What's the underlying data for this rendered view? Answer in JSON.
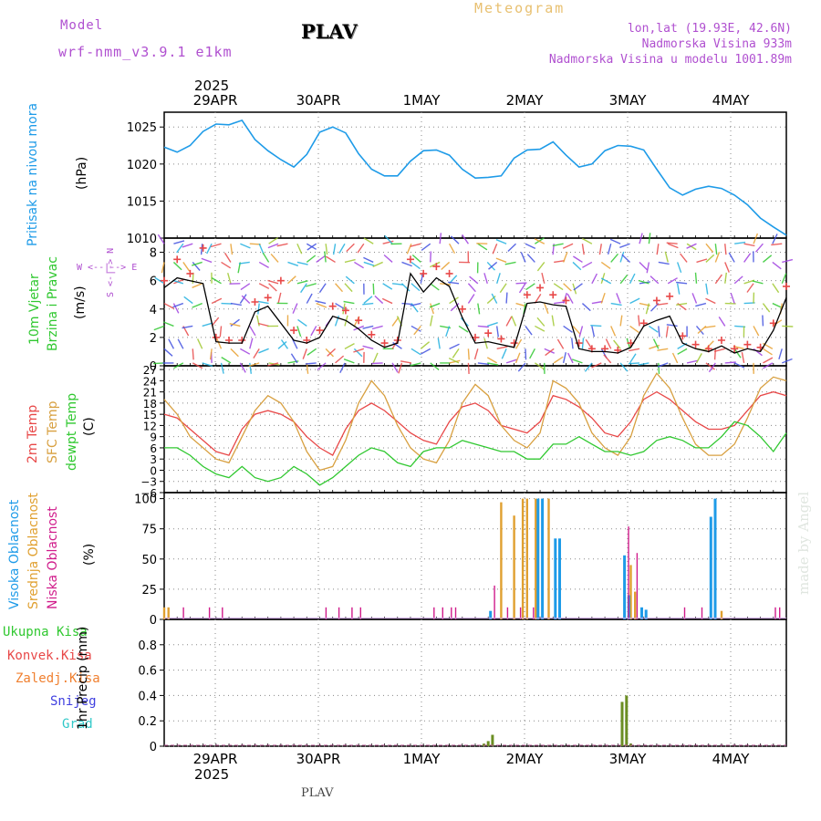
{
  "header": {
    "model_label": "Model",
    "model_name": "wrf-nmm_v3.9.1  e1km",
    "station": "PLAV",
    "meteogram": "Meteogram",
    "lonlat": "lon,lat (19.93E, 42.6N)",
    "altitude": "Nadmorska Visina 933m",
    "model_altitude": "Nadmorska Visina u modelu 1001.89m",
    "year": "2025",
    "footer_station": "PLAV",
    "watermark": "made by Angel"
  },
  "colors": {
    "pressure": "#1e9be8",
    "temp2m": "#e84848",
    "sfc": "#d8a040",
    "dewpt": "#30c830",
    "high_cloud": "#1e9be8",
    "mid_cloud": "#e0a030",
    "low_cloud": "#d01c8b",
    "total_precip": "#30c830",
    "conv_precip": "#e84848",
    "frozen_precip": "#f08030",
    "snow": "#4040e0",
    "hail": "#30c8c8",
    "precip_bar": "#6b8e23",
    "title_purple": "#b050d0",
    "meteogram_gold": "#e8c070"
  },
  "chart_data": [
    {
      "type": "line",
      "id": "pressure",
      "ylabel": [
        "Pritisak na nivou mora",
        "(hPa)"
      ],
      "x_ticks": [
        "29APR",
        "30APR",
        "1MAY",
        "2MAY",
        "3MAY",
        "4MAY"
      ],
      "ylim": [
        1010,
        1027
      ],
      "y_ticks": [
        1010,
        1015,
        1020,
        1025
      ],
      "grid": true,
      "x_hours": [
        0,
        3,
        6,
        9,
        12,
        15,
        18,
        21,
        24,
        27,
        30,
        33,
        36,
        39,
        42,
        45,
        48,
        51,
        54,
        57,
        60,
        63,
        66,
        69,
        72,
        75,
        78,
        81,
        84,
        87,
        90,
        93,
        96,
        99,
        102,
        105,
        108,
        111,
        114,
        117,
        120,
        123,
        126,
        129,
        132,
        135,
        138,
        141,
        144
      ],
      "values": [
        1022.3,
        1021.6,
        1022.5,
        1024.4,
        1025.4,
        1025.3,
        1025.9,
        1023.3,
        1021.8,
        1020.6,
        1019.6,
        1021.3,
        1024.3,
        1025.0,
        1024.2,
        1021.4,
        1019.3,
        1018.4,
        1018.4,
        1020.4,
        1021.8,
        1021.9,
        1021.2,
        1019.3,
        1018.1,
        1018.2,
        1018.4,
        1020.8,
        1021.9,
        1022.0,
        1023.0,
        1021.2,
        1019.6,
        1020.0,
        1021.8,
        1022.5,
        1022.4,
        1021.9,
        1019.3,
        1016.8,
        1015.8,
        1016.6,
        1017.0,
        1016.7,
        1015.8,
        1014.5,
        1012.7,
        1011.5,
        1010.4
      ]
    },
    {
      "type": "line",
      "id": "wind",
      "ylabel": [
        "10m Vjetar",
        "Brzina i Pravac",
        "(m/s)"
      ],
      "compass": "W <--|--> E",
      "compass_ns": "S <-|-> N",
      "ylim": [
        0,
        9
      ],
      "y_ticks": [
        0,
        2,
        4,
        6,
        8
      ],
      "grid": true,
      "x_hours": [
        0,
        3,
        6,
        9,
        12,
        15,
        18,
        21,
        24,
        27,
        30,
        33,
        36,
        39,
        42,
        45,
        48,
        51,
        54,
        57,
        60,
        63,
        66,
        69,
        72,
        75,
        78,
        81,
        84,
        87,
        90,
        93,
        96,
        99,
        102,
        105,
        108,
        111,
        114,
        117,
        120,
        123,
        126,
        129,
        132,
        135,
        138,
        141,
        144
      ],
      "speed": [
        5.5,
        6.2,
        6.0,
        5.8,
        1.7,
        1.6,
        1.6,
        3.8,
        4.2,
        3.0,
        1.8,
        1.6,
        2.0,
        3.5,
        3.2,
        2.6,
        1.8,
        1.3,
        1.6,
        6.5,
        5.2,
        6.2,
        5.6,
        3.4,
        1.6,
        1.7,
        1.5,
        1.3,
        4.4,
        4.5,
        4.3,
        4.2,
        1.2,
        1.0,
        1.0,
        0.9,
        1.3,
        2.8,
        3.2,
        3.5,
        1.6,
        1.2,
        1.0,
        1.4,
        0.9,
        1.2,
        1.0,
        2.5,
        4.8
      ],
      "gust": [
        6.0,
        7.5,
        6.5,
        8.3,
        2.0,
        1.8,
        1.8,
        4.5,
        4.8,
        6.0,
        2.5,
        1.8,
        2.5,
        4.2,
        3.9,
        3.2,
        2.2,
        1.6,
        1.8,
        7.5,
        6.5,
        7.0,
        6.5,
        4.0,
        2.0,
        2.3,
        1.9,
        1.6,
        5.0,
        5.5,
        5.0,
        4.6,
        1.6,
        1.2,
        1.2,
        1.1,
        1.6,
        3.0,
        4.6,
        4.9,
        2.1,
        1.5,
        1.2,
        1.8,
        1.2,
        1.5,
        1.3,
        3.0,
        5.6
      ]
    },
    {
      "type": "line",
      "id": "temperature",
      "ylabel": [
        "2m Temp",
        "SFC Temp",
        "dewpt Temp",
        "(C)"
      ],
      "ylim": [
        -6,
        28
      ],
      "y_ticks": [
        -6,
        -3,
        0,
        3,
        6,
        9,
        12,
        15,
        18,
        21,
        24,
        27
      ],
      "grid": true,
      "x_hours": [
        0,
        3,
        6,
        9,
        12,
        15,
        18,
        21,
        24,
        27,
        30,
        33,
        36,
        39,
        42,
        45,
        48,
        51,
        54,
        57,
        60,
        63,
        66,
        69,
        72,
        75,
        78,
        81,
        84,
        87,
        90,
        93,
        96,
        99,
        102,
        105,
        108,
        111,
        114,
        117,
        120,
        123,
        126,
        129,
        132,
        135,
        138,
        141,
        144
      ],
      "series": [
        {
          "name": "2m Temp",
          "values": [
            15,
            14,
            11,
            8,
            5,
            4,
            11,
            15,
            16,
            15,
            13,
            9,
            6,
            4,
            11,
            16,
            18,
            16,
            13,
            10,
            8,
            7,
            13,
            17,
            18,
            16,
            12,
            11,
            10,
            13,
            20,
            19,
            17,
            14,
            10,
            9,
            13,
            19,
            21,
            19,
            16,
            13,
            11,
            11,
            12,
            16,
            20,
            21,
            20
          ]
        },
        {
          "name": "SFC Temp",
          "values": [
            19,
            15,
            9,
            6,
            3,
            2,
            9,
            16,
            20,
            18,
            13,
            5,
            0,
            1,
            8,
            18,
            24,
            20,
            12,
            6,
            3,
            2,
            8,
            18,
            23,
            20,
            12,
            8,
            6,
            10,
            24,
            22,
            18,
            10,
            6,
            4,
            9,
            20,
            26,
            22,
            14,
            7,
            4,
            4,
            7,
            14,
            22,
            25,
            24
          ]
        },
        {
          "name": "dewpt Temp",
          "values": [
            6,
            6,
            4,
            1,
            -1,
            -2,
            1,
            -2,
            -3,
            -2,
            1,
            -1,
            -4,
            -2,
            1,
            4,
            6,
            5,
            2,
            1,
            5,
            6,
            6,
            8,
            7,
            6,
            5,
            5,
            3,
            3,
            7,
            7,
            9,
            7,
            5,
            5,
            4,
            5,
            8,
            9,
            8,
            6,
            6,
            9,
            13,
            12,
            9,
            5,
            10
          ]
        }
      ]
    },
    {
      "type": "bar",
      "id": "cloud",
      "ylabel": [
        "Visoka Oblacnost",
        "Srednja Oblacnost",
        "Niska Oblacnost",
        "(%)"
      ],
      "ylim": [
        0,
        105
      ],
      "y_ticks": [
        0,
        25,
        50,
        75,
        100
      ],
      "grid": true,
      "series": [
        {
          "name": "Visoka Oblacnost",
          "x_hours": [
            76,
            87,
            88,
            91,
            92,
            107,
            108,
            111,
            112,
            127,
            128
          ],
          "values": [
            7,
            100,
            100,
            67,
            67,
            53,
            20,
            10,
            8,
            85,
            100
          ]
        },
        {
          "name": "Srednja Oblacnost",
          "x_hours": [
            0,
            1,
            78,
            81,
            83,
            84,
            86,
            89,
            108,
            109,
            129
          ],
          "values": [
            10,
            10,
            97,
            86,
            100,
            100,
            100,
            100,
            45,
            23,
            7
          ]
        },
        {
          "name": "Niska Oblacnost",
          "x_hours": [
            4,
            10,
            13,
            37,
            40,
            43,
            45,
            62,
            64,
            66,
            67,
            76,
            79,
            82,
            85,
            107,
            109,
            120,
            124,
            141,
            142
          ],
          "values": [
            10,
            10,
            10,
            10,
            10,
            10,
            10,
            10,
            10,
            10,
            10,
            28,
            10,
            10,
            10,
            77,
            55,
            10,
            10,
            10,
            10
          ]
        }
      ]
    },
    {
      "type": "bar",
      "id": "precip",
      "ylabel": [
        "1hr Precip (mm)"
      ],
      "legend": [
        "Ukupna Kisa",
        "Konvek.Kisa",
        "Zaledj.Kisa",
        "Snijeg",
        "Grad"
      ],
      "ylim": [
        0,
        1.0
      ],
      "y_ticks": [
        0,
        0.2,
        0.4,
        0.6,
        0.8
      ],
      "grid": true,
      "x_hours": [
        74,
        75,
        76,
        106,
        107,
        108
      ],
      "values": [
        0.02,
        0.04,
        0.09,
        0.35,
        0.4,
        0.02
      ]
    }
  ]
}
